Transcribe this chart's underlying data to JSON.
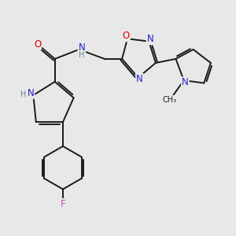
{
  "bg_color": "#e8e8e8",
  "bond_color": "#1a1a1a",
  "atom_colors": {
    "N": "#2222cc",
    "O": "#dd0000",
    "F": "#cc44cc",
    "H": "#5a8a8a",
    "C": "#1a1a1a"
  },
  "bond_width": 1.4,
  "font_size": 8.5
}
